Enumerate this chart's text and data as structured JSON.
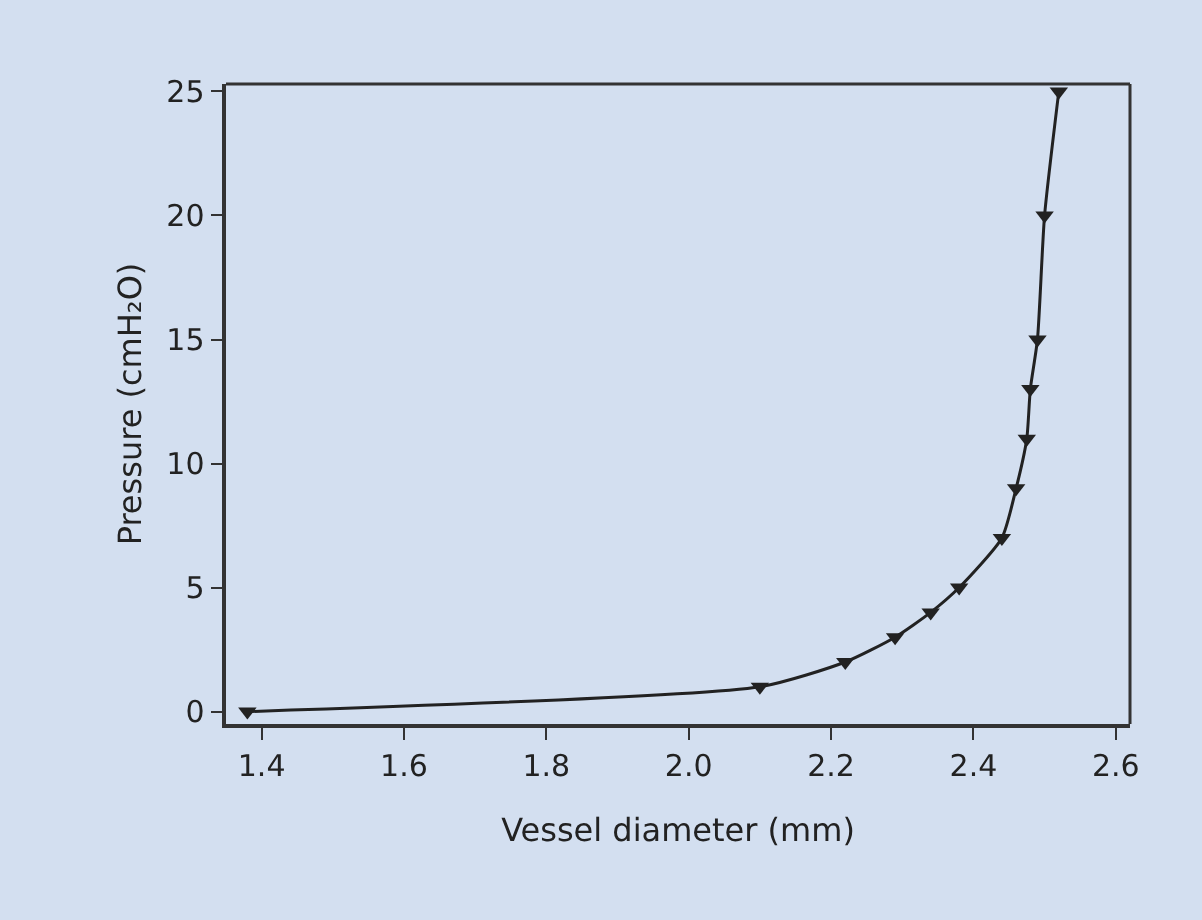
{
  "chart_data": {
    "type": "line",
    "xlabel": "Vessel diameter (mm)",
    "ylabel": "Pressure (cmH₂O)",
    "x": [
      1.38,
      2.1,
      2.22,
      2.29,
      2.34,
      2.38,
      2.44,
      2.46,
      2.475,
      2.48,
      2.49,
      2.5,
      2.52
    ],
    "series": [
      {
        "color": "#222222",
        "values": [
          0,
          1,
          2,
          3,
          4,
          5,
          7,
          9,
          11,
          13,
          15,
          20,
          25
        ]
      }
    ],
    "xlim": [
      1.35,
      2.62
    ],
    "xticks": [
      1.4,
      1.6,
      1.8,
      {
        "value": 2.0,
        "label": "2.0"
      },
      2.2,
      2.4,
      2.6
    ],
    "ylim": [
      -0.5,
      25.3
    ],
    "yticks": [
      0,
      5,
      10,
      15,
      20,
      25
    ],
    "grid": false,
    "legend": false,
    "marker": "triangle",
    "line_style": "solid"
  }
}
